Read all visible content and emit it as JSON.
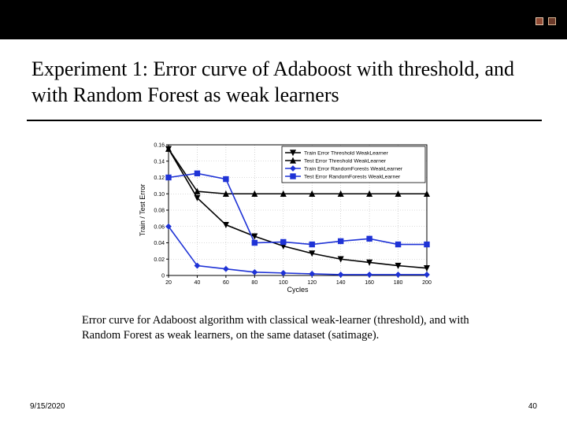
{
  "topbar": {
    "bg": "#000000",
    "accent_squares": [
      "#8f4a34",
      "#6b3a2a"
    ]
  },
  "title": "Experiment 1: Error curve of Adaboost with threshold, and with Random Forest as weak learners",
  "title_fontsize": 26,
  "caption": "Error curve for Adaboost algorithm with classical weak-learner (threshold), and with Random Forest as weak learners, on the same dataset (satimage).",
  "caption_fontsize": 14.5,
  "footer": {
    "date": "9/15/2020",
    "page": "40"
  },
  "chart": {
    "type": "line",
    "title": "",
    "xlabel": "Cycles",
    "ylabel": "Train / Test Error",
    "label_fontsize": 9,
    "tick_fontsize": 7,
    "xlim": [
      20,
      200
    ],
    "xtick_step": 20,
    "ylim": [
      0,
      0.16
    ],
    "ytick_step": 0.02,
    "grid": true,
    "grid_color": "#b8b8b8",
    "background_color": "#ffffff",
    "axis_color": "#000000",
    "x_values": [
      20,
      40,
      60,
      80,
      100,
      120,
      140,
      160,
      180,
      200
    ],
    "series": [
      {
        "name": "Train Error Threshold WeakLearner",
        "color": "#000000",
        "linewidth": 1.6,
        "marker": "triangle-down",
        "y": [
          0.155,
          0.095,
          0.062,
          0.048,
          0.036,
          0.027,
          0.02,
          0.016,
          0.012,
          0.009
        ]
      },
      {
        "name": "Test Error Threshold WeakLearner",
        "color": "#000000",
        "linewidth": 1.6,
        "marker": "triangle-up",
        "y": [
          0.155,
          0.103,
          0.1,
          0.1,
          0.1,
          0.1,
          0.1,
          0.1,
          0.1,
          0.1
        ]
      },
      {
        "name": "Train Error RandomForests WeakLearner",
        "color": "#1f33d6",
        "linewidth": 1.6,
        "marker": "diamond",
        "y": [
          0.06,
          0.012,
          0.008,
          0.004,
          0.003,
          0.002,
          0.001,
          0.001,
          0.001,
          0.001
        ]
      },
      {
        "name": "Test Error RandomForests WeakLearner",
        "color": "#1f33d6",
        "linewidth": 1.6,
        "marker": "square",
        "y": [
          0.12,
          0.125,
          0.118,
          0.04,
          0.041,
          0.038,
          0.042,
          0.045,
          0.038,
          0.038
        ]
      }
    ],
    "legend": {
      "position": "top-right-inside",
      "bg": "#ffffff",
      "border_color": "#000000",
      "fontsize": 6.8
    }
  }
}
